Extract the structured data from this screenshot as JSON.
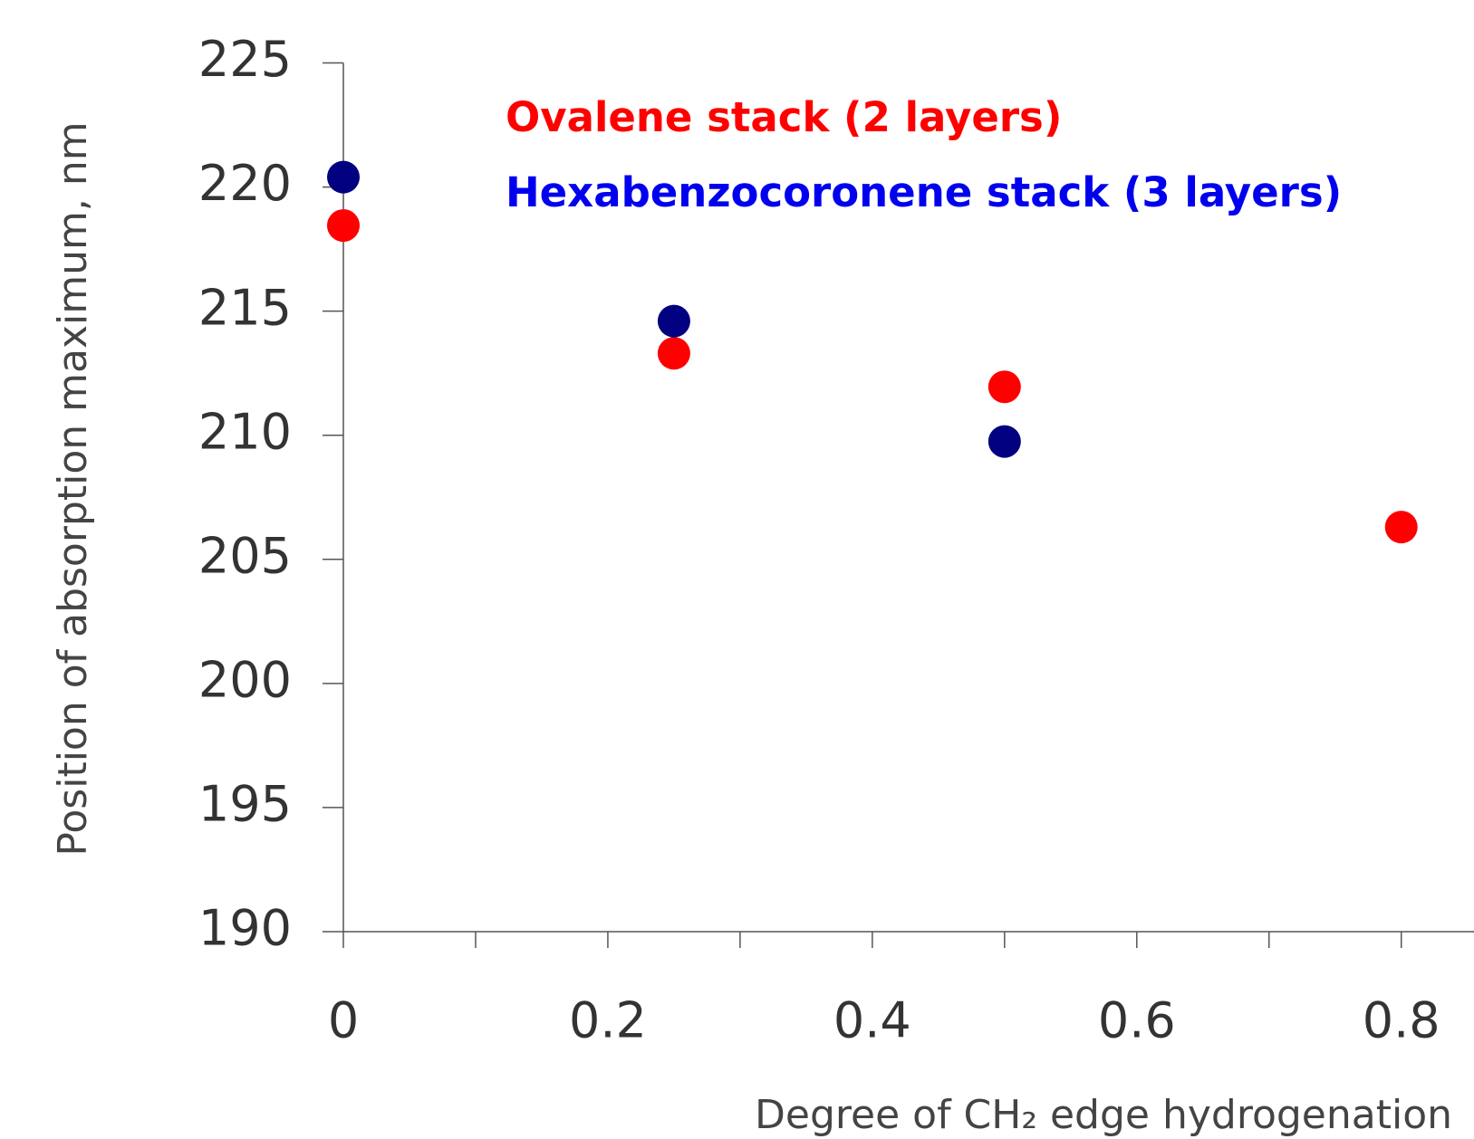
{
  "chart_data": {
    "type": "scatter",
    "x_label": "Degree of CH₂ edge hydrogenation",
    "y_label": "Position of absorption maximum, nm",
    "xlim": [
      0,
      0.855
    ],
    "ylim": [
      190,
      225
    ],
    "xticks": [
      0,
      0.2,
      0.4,
      0.6,
      0.8
    ],
    "xminor_ticks": [
      0.1,
      0.3,
      0.5,
      0.7
    ],
    "yticks": [
      190,
      195,
      200,
      205,
      210,
      215,
      220,
      225
    ],
    "grid": false,
    "legend": "top",
    "series": [
      {
        "name": "Ovalene stack (2 layers)",
        "color": "#ff0000",
        "x": [
          0,
          0.25,
          0.5,
          0.8
        ],
        "values": [
          218.45,
          213.3,
          211.95,
          206.3
        ]
      },
      {
        "name": "Hexabenzocoronene stack (3 layers)",
        "color": "#000080",
        "legend_color": "#0000ee",
        "x": [
          0,
          0.25,
          0.5
        ],
        "values": [
          220.4,
          214.6,
          209.75
        ]
      }
    ]
  }
}
